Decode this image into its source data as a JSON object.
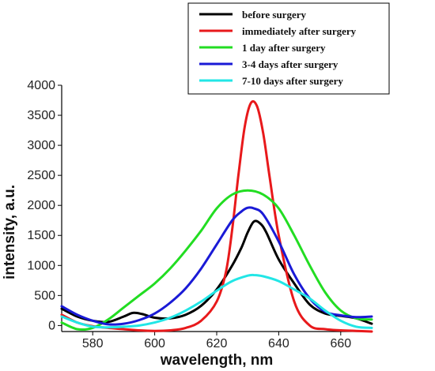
{
  "chart_data": {
    "type": "line",
    "xlabel": "wavelength, nm",
    "ylabel": "intensity, a.u.",
    "xlim": [
      570,
      670
    ],
    "ylim": [
      -100,
      4000
    ],
    "xticks": [
      580,
      600,
      620,
      640,
      660
    ],
    "yticks": [
      0,
      500,
      1000,
      1500,
      2000,
      2500,
      3000,
      3500,
      4000
    ],
    "grid": false,
    "legend_position": "top-right",
    "series": [
      {
        "name": "before surgery",
        "color": "#000000",
        "x": [
          570,
          575,
          580,
          585,
          590,
          593,
          596,
          600,
          605,
          610,
          615,
          620,
          625,
          628,
          630,
          632,
          634,
          636,
          640,
          645,
          650,
          655,
          660,
          665,
          670
        ],
        "y": [
          280,
          150,
          80,
          60,
          150,
          210,
          190,
          130,
          120,
          180,
          330,
          600,
          1000,
          1300,
          1550,
          1730,
          1700,
          1550,
          1100,
          700,
          350,
          200,
          160,
          120,
          30
        ]
      },
      {
        "name": "immediately after surgery",
        "color": "#e8191b",
        "x": [
          570,
          575,
          580,
          585,
          590,
          595,
          600,
          605,
          610,
          615,
          620,
          623,
          625,
          627,
          629,
          631,
          633,
          635,
          637,
          640,
          645,
          650,
          655,
          660,
          665,
          670
        ],
        "y": [
          180,
          50,
          -10,
          -40,
          -60,
          -80,
          -90,
          -80,
          -40,
          80,
          400,
          900,
          1600,
          2500,
          3300,
          3700,
          3650,
          3200,
          2500,
          1500,
          400,
          0,
          -60,
          -80,
          -90,
          -100
        ]
      },
      {
        "name": "1 day after surgery",
        "color": "#22dd22",
        "x": [
          570,
          575,
          580,
          585,
          590,
          595,
          600,
          605,
          610,
          615,
          620,
          625,
          630,
          635,
          640,
          645,
          650,
          655,
          660,
          665,
          670
        ],
        "y": [
          50,
          -60,
          -40,
          100,
          300,
          500,
          700,
          950,
          1250,
          1580,
          1950,
          2180,
          2250,
          2180,
          1950,
          1500,
          1000,
          550,
          250,
          120,
          100
        ]
      },
      {
        "name": "3-4 days after surgery",
        "color": "#1a1ad6",
        "x": [
          570,
          575,
          580,
          585,
          590,
          595,
          600,
          605,
          610,
          615,
          620,
          625,
          628,
          630,
          632,
          635,
          640,
          645,
          650,
          655,
          660,
          665,
          670
        ],
        "y": [
          320,
          180,
          80,
          20,
          30,
          90,
          200,
          380,
          620,
          950,
          1350,
          1750,
          1900,
          1960,
          1950,
          1850,
          1400,
          850,
          450,
          230,
          170,
          140,
          150
        ]
      },
      {
        "name": "7-10 days after surgery",
        "color": "#22e6e6",
        "x": [
          570,
          575,
          580,
          585,
          590,
          595,
          600,
          605,
          610,
          615,
          620,
          625,
          630,
          632,
          635,
          640,
          645,
          650,
          655,
          660,
          665,
          670
        ],
        "y": [
          150,
          50,
          -20,
          -30,
          -20,
          0,
          50,
          130,
          250,
          400,
          580,
          740,
          830,
          840,
          820,
          740,
          600,
          450,
          250,
          80,
          -20,
          -40
        ]
      }
    ]
  }
}
